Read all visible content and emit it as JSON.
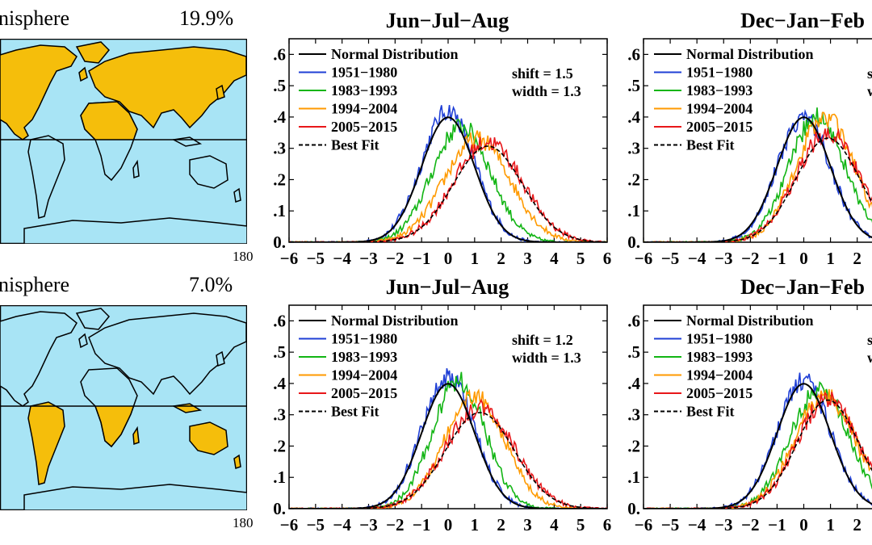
{
  "maps": [
    {
      "title": "nisphere",
      "percent": "19.9%",
      "lon_label": "180",
      "region": "northern-hemisphere",
      "colors": {
        "ocean": "#a8e4f5",
        "land_highlight": "#f5be0b",
        "land_plain": "#a8e4f5"
      }
    },
    {
      "title": "nisphere",
      "percent": "7.0%",
      "lon_label": "180",
      "region": "southern-hemisphere",
      "colors": {
        "ocean": "#a8e4f5",
        "land_highlight": "#f5be0b",
        "land_plain": "#a8e4f5"
      }
    }
  ],
  "chart_data": [
    {
      "type": "line",
      "title": "Jun−Jul−Aug",
      "xlim": [
        -6,
        6
      ],
      "ylim": [
        0,
        0.65
      ],
      "xticks": [
        "−6",
        "−5",
        "−4",
        "−3",
        "−2",
        "−1",
        "0",
        "1",
        "2",
        "3",
        "4",
        "5",
        "6"
      ],
      "yticks": [
        "0.",
        ".1",
        ".2",
        ".3",
        ".4",
        ".5",
        ".6"
      ],
      "annotation": [
        "shift = 1.5",
        "width = 1.3"
      ],
      "legend": [
        "Normal Distribution",
        "1951−1980",
        "1983−1993",
        "1994−2004",
        "2005−2015",
        "Best Fit"
      ],
      "series": [
        {
          "name": "Normal Distribution",
          "color": "#000000",
          "mean": 0,
          "sd": 1.0,
          "style": "solid"
        },
        {
          "name": "1951−1980",
          "color": "#1f3fd6",
          "mean": 0,
          "sd": 1.0,
          "peak": 0.42,
          "style": "solid"
        },
        {
          "name": "1983−1993",
          "color": "#12b514",
          "mean": 0.5,
          "sd": 1.1,
          "peak": 0.37,
          "style": "solid"
        },
        {
          "name": "1994−2004",
          "color": "#ff9a00",
          "mean": 1.1,
          "sd": 1.25,
          "peak": 0.33,
          "style": "solid"
        },
        {
          "name": "2005−2015",
          "color": "#e8171a",
          "mean": 1.5,
          "sd": 1.3,
          "peak": 0.32,
          "style": "solid"
        },
        {
          "name": "Best Fit",
          "color": "#000000",
          "mean": 1.5,
          "sd": 1.3,
          "style": "dashed"
        }
      ]
    },
    {
      "type": "line",
      "title": "Dec−Jan−Feb",
      "xlim": [
        -6,
        6
      ],
      "ylim": [
        0,
        0.65
      ],
      "xticks": [
        "−6",
        "−5",
        "−4",
        "−3",
        "−2",
        "−1",
        "0",
        "1",
        "2"
      ],
      "yticks": [
        "0.",
        ".1",
        ".2",
        ".3",
        ".4",
        ".5",
        ".6"
      ],
      "annotation": [
        "s",
        "w"
      ],
      "legend": [
        "Normal Distribution",
        "1951−1980",
        "1983−1993",
        "1994−2004",
        "2005−2015",
        "Best Fit"
      ],
      "series": [
        {
          "name": "Normal Distribution",
          "color": "#000000",
          "mean": 0,
          "sd": 1.0,
          "style": "solid"
        },
        {
          "name": "1951−1980",
          "color": "#1f3fd6",
          "mean": 0,
          "sd": 1.0,
          "peak": 0.4,
          "style": "solid"
        },
        {
          "name": "1983−1993",
          "color": "#12b514",
          "mean": 0.5,
          "sd": 1.05,
          "peak": 0.4,
          "style": "solid"
        },
        {
          "name": "1994−2004",
          "color": "#ff9a00",
          "mean": 0.8,
          "sd": 1.1,
          "peak": 0.4,
          "style": "solid"
        },
        {
          "name": "2005−2015",
          "color": "#e8171a",
          "mean": 0.9,
          "sd": 1.2,
          "peak": 0.35,
          "style": "solid"
        },
        {
          "name": "Best Fit",
          "color": "#000000",
          "mean": 0.9,
          "sd": 1.2,
          "style": "dashed"
        }
      ]
    },
    {
      "type": "line",
      "title": "Jun−Jul−Aug",
      "xlim": [
        -6,
        6
      ],
      "ylim": [
        0,
        0.65
      ],
      "xticks": [
        "−6",
        "−5",
        "−4",
        "−3",
        "−2",
        "−1",
        "0",
        "1",
        "2",
        "3",
        "4",
        "5",
        "6"
      ],
      "yticks": [
        "0.",
        ".1",
        ".2",
        ".3",
        ".4",
        ".5",
        ".6"
      ],
      "annotation": [
        "shift = 1.2",
        "width = 1.3"
      ],
      "legend": [
        "Normal Distribution",
        "1951−1980",
        "1983−1993",
        "1994−2004",
        "2005−2015",
        "Best Fit"
      ],
      "series": [
        {
          "name": "Normal Distribution",
          "color": "#000000",
          "mean": 0,
          "sd": 1.0,
          "style": "solid"
        },
        {
          "name": "1951−1980",
          "color": "#1f3fd6",
          "mean": 0,
          "sd": 1.0,
          "peak": 0.42,
          "style": "solid"
        },
        {
          "name": "1983−1993",
          "color": "#12b514",
          "mean": 0.4,
          "sd": 1.0,
          "peak": 0.41,
          "style": "solid"
        },
        {
          "name": "1994−2004",
          "color": "#ff9a00",
          "mean": 1.0,
          "sd": 1.15,
          "peak": 0.36,
          "style": "solid"
        },
        {
          "name": "2005−2015",
          "color": "#e8171a",
          "mean": 1.2,
          "sd": 1.3,
          "peak": 0.32,
          "style": "solid"
        },
        {
          "name": "Best Fit",
          "color": "#000000",
          "mean": 1.2,
          "sd": 1.3,
          "style": "dashed"
        }
      ]
    },
    {
      "type": "line",
      "title": "Dec−Jan−Feb",
      "xlim": [
        -6,
        6
      ],
      "ylim": [
        0,
        0.65
      ],
      "xticks": [
        "−6",
        "−5",
        "−4",
        "−3",
        "−2",
        "−1",
        "0",
        "1",
        "2"
      ],
      "yticks": [
        "0.",
        ".1",
        ".2",
        ".3",
        ".4",
        ".5",
        ".6"
      ],
      "annotation": [
        "s",
        "w"
      ],
      "legend": [
        "Normal Distribution",
        "1951−1980",
        "1983−1993",
        "1994−2004",
        "2005−2015",
        "Best Fit"
      ],
      "series": [
        {
          "name": "Normal Distribution",
          "color": "#000000",
          "mean": 0,
          "sd": 1.0,
          "style": "solid"
        },
        {
          "name": "1951−1980",
          "color": "#1f3fd6",
          "mean": 0,
          "sd": 1.0,
          "peak": 0.41,
          "style": "solid"
        },
        {
          "name": "1983−1993",
          "color": "#12b514",
          "mean": 0.6,
          "sd": 1.1,
          "peak": 0.38,
          "style": "solid"
        },
        {
          "name": "1994−2004",
          "color": "#ff9a00",
          "mean": 0.8,
          "sd": 1.15,
          "peak": 0.36,
          "style": "solid"
        },
        {
          "name": "2005−2015",
          "color": "#e8171a",
          "mean": 0.9,
          "sd": 1.15,
          "peak": 0.35,
          "style": "solid"
        },
        {
          "name": "Best Fit",
          "color": "#000000",
          "mean": 0.9,
          "sd": 1.15,
          "style": "dashed"
        }
      ]
    }
  ]
}
